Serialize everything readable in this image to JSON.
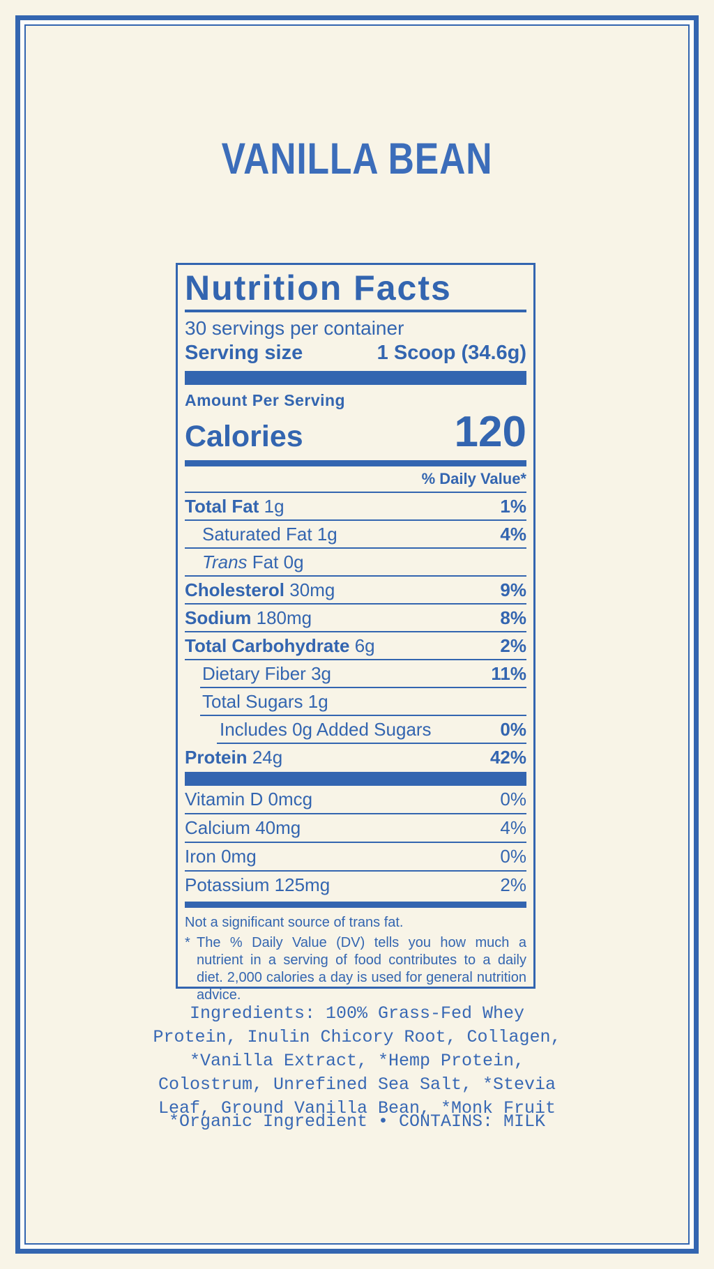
{
  "colors": {
    "background": "#F8F4E7",
    "accent_blue": "#3365B0",
    "title_blue": "#3C6DBA",
    "frame_gap": "#FDFDFA"
  },
  "title": "VANILLA BEAN",
  "panel": {
    "heading": "Nutrition Facts",
    "servings_per_container": "30 servings per container",
    "serving_size_label": "Serving size",
    "serving_size_value": "1 Scoop (34.6g)",
    "amount_per_serving": "Amount Per Serving",
    "calories_label": "Calories",
    "calories_value": "120",
    "daily_value_header": "% Daily Value*",
    "rows": [
      {
        "name": "Total Fat",
        "amount": "1g",
        "dv": "1%"
      },
      {
        "name": "Saturated Fat",
        "amount": "1g",
        "dv": "4%"
      },
      {
        "name_italic": "Trans",
        "name": "Fat",
        "amount": "0g",
        "dv": ""
      },
      {
        "name": "Cholesterol",
        "amount": "30mg",
        "dv": "9%"
      },
      {
        "name": "Sodium",
        "amount": "180mg",
        "dv": "8%"
      },
      {
        "name": "Total Carbohydrate",
        "amount": "6g",
        "dv": "2%"
      },
      {
        "name": "Dietary Fiber",
        "amount": "3g",
        "dv": "11%"
      },
      {
        "name": "Total Sugars",
        "amount": "1g",
        "dv": ""
      },
      {
        "name": "Includes 0g Added Sugars",
        "amount": "",
        "dv": "0%"
      },
      {
        "name": "Protein",
        "amount": "24g",
        "dv": "42%"
      }
    ],
    "vitamins": [
      {
        "name": "Vitamin D",
        "amount": "0mcg",
        "dv": "0%"
      },
      {
        "name": "Calcium",
        "amount": "40mg",
        "dv": "4%"
      },
      {
        "name": "Iron",
        "amount": "0mg",
        "dv": "0%"
      },
      {
        "name": "Potassium",
        "amount": "125mg",
        "dv": "2%"
      }
    ],
    "footnote_trans": "Not a significant source of trans fat.",
    "footnote_marker": "*",
    "footnote_dv": "The % Daily Value (DV) tells you how much a nutrient in a serving of food contributes to a daily diet. 2,000 calories a day is used for general nutrition advice."
  },
  "ingredients": "Ingredients: 100% Grass-Fed Whey\nProtein, Inulin Chicory Root, Collagen,\n*Vanilla Extract, *Hemp Protein,\nColostrum, Unrefined Sea Salt, *Stevia\nLeaf, Ground Vanilla Bean, *Monk Fruit",
  "allergen_line": "*Organic Ingredient • CONTAINS: MILK"
}
